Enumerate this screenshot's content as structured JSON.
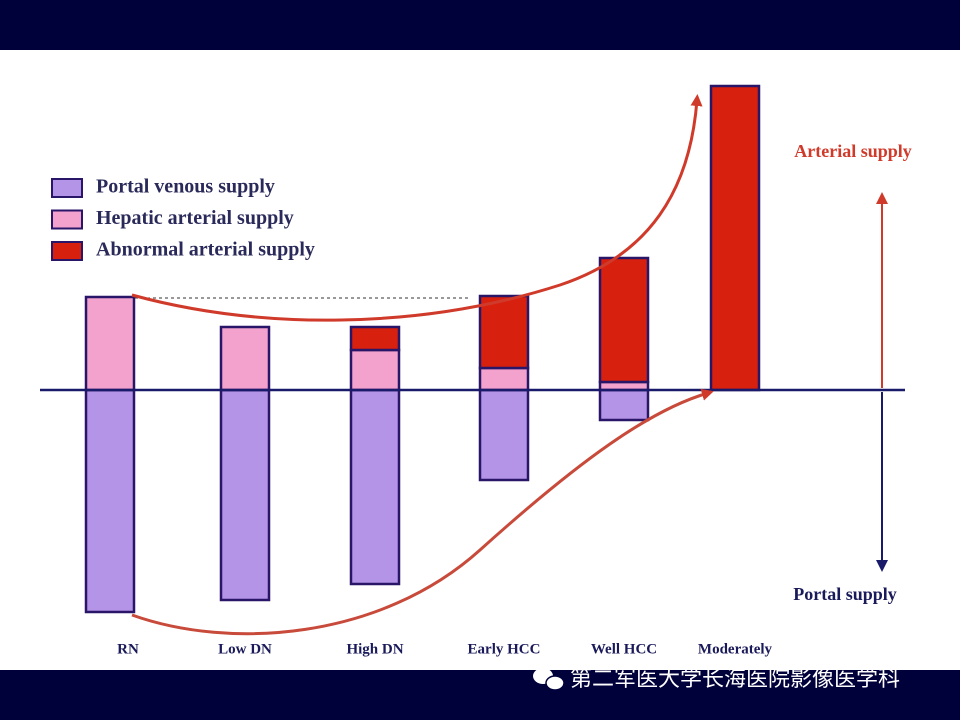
{
  "chart_data": {
    "type": "diverging_stacked_bar",
    "categories": [
      "RN",
      "Low DN",
      "High DN",
      "Early HCC",
      "Well HCC",
      "Moderately"
    ],
    "series": [
      {
        "name": "Portal venous supply",
        "color": "#b494e6",
        "values": [
          -222,
          -210,
          -194,
          -90,
          -30,
          0
        ]
      },
      {
        "name": "Hepatic arterial supply",
        "color": "#f2a2cc",
        "values": [
          93,
          63,
          40,
          22,
          8,
          0
        ]
      },
      {
        "name": "Abnormal arterial supply",
        "color": "#d8200e",
        "values": [
          0,
          0,
          23,
          72,
          124,
          304
        ]
      }
    ],
    "ylim": [
      -240,
      320
    ],
    "annotations": [
      "Arterial supply",
      "Portal supply"
    ],
    "watermark": "第二军医大学长海医院影像医学科"
  }
}
